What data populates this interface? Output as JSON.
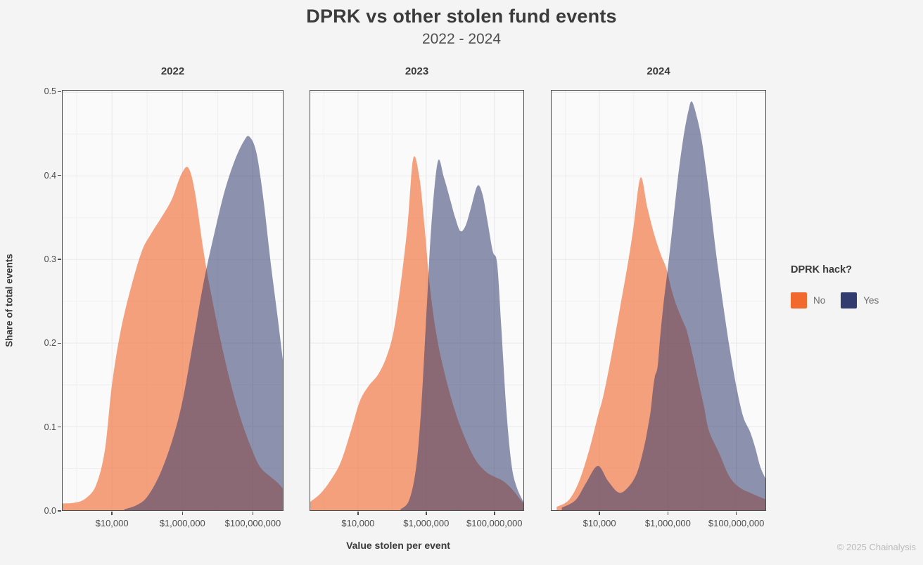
{
  "title": "DPRK vs other stolen fund events",
  "subtitle": "2022 - 2024",
  "axes": {
    "y_label": "Share of total events",
    "x_label": "Value stolen per event"
  },
  "legend": {
    "title": "DPRK hack?",
    "items": [
      {
        "label": "No",
        "color": "#f2692e"
      },
      {
        "label": "Yes",
        "color": "#323c6e"
      }
    ]
  },
  "footer": "© 2025 Chainalysis",
  "chart_data": {
    "type": "area",
    "subtype": "density",
    "title": "DPRK vs other stolen fund events",
    "subtitle": "2022 - 2024",
    "xlabel": "Value stolen per event",
    "ylabel": "Share of total events",
    "x_scale": "log10",
    "x_domain_log10": [
      2.6,
      8.85
    ],
    "y_domain": [
      0,
      0.502
    ],
    "grid": true,
    "legend_position": "right",
    "x_major_ticks_log10": [
      4,
      6,
      8
    ],
    "x_minor_gridlines_log10": [
      3,
      5,
      7
    ],
    "x_tick_labels": [
      "$10,000",
      "$1,000,000",
      "$100,000,000"
    ],
    "y_major_ticks": [
      0,
      0.1,
      0.2,
      0.3,
      0.4,
      0.5
    ],
    "y_minor_gridlines": [
      0.05,
      0.15,
      0.25,
      0.35,
      0.45
    ],
    "y_tick_labels": [
      "0.0",
      "0.1",
      "0.2",
      "0.3",
      "0.4",
      "0.5"
    ],
    "panels": [
      {
        "facet": "2022",
        "series": [
          {
            "name": "No",
            "color": "#f2692e",
            "fill_opacity": 0.62,
            "points_log10x_share": [
              [
                2.6,
                0.008
              ],
              [
                2.95,
                0.009
              ],
              [
                3.25,
                0.014
              ],
              [
                3.55,
                0.03
              ],
              [
                3.8,
                0.072
              ],
              [
                4.0,
                0.15
              ],
              [
                4.25,
                0.215
              ],
              [
                4.55,
                0.268
              ],
              [
                4.85,
                0.31
              ],
              [
                5.1,
                0.33
              ],
              [
                5.4,
                0.35
              ],
              [
                5.7,
                0.372
              ],
              [
                5.95,
                0.4
              ],
              [
                6.16,
                0.41
              ],
              [
                6.35,
                0.382
              ],
              [
                6.6,
                0.31
              ],
              [
                6.8,
                0.262
              ],
              [
                7.05,
                0.21
              ],
              [
                7.35,
                0.155
              ],
              [
                7.65,
                0.11
              ],
              [
                7.95,
                0.075
              ],
              [
                8.2,
                0.052
              ],
              [
                8.5,
                0.04
              ],
              [
                8.7,
                0.033
              ],
              [
                8.85,
                0.026
              ]
            ]
          },
          {
            "name": "Yes",
            "color": "#323c6e",
            "fill_opacity": 0.55,
            "points_log10x_share": [
              [
                4.35,
                0.001
              ],
              [
                4.7,
                0.006
              ],
              [
                5.0,
                0.016
              ],
              [
                5.35,
                0.042
              ],
              [
                5.7,
                0.082
              ],
              [
                6.0,
                0.13
              ],
              [
                6.3,
                0.2
              ],
              [
                6.6,
                0.272
              ],
              [
                6.9,
                0.33
              ],
              [
                7.2,
                0.382
              ],
              [
                7.5,
                0.42
              ],
              [
                7.75,
                0.442
              ],
              [
                7.9,
                0.447
              ],
              [
                8.1,
                0.428
              ],
              [
                8.3,
                0.372
              ],
              [
                8.5,
                0.298
              ],
              [
                8.7,
                0.232
              ],
              [
                8.85,
                0.18
              ]
            ]
          }
        ]
      },
      {
        "facet": "2023",
        "series": [
          {
            "name": "No",
            "color": "#f2692e",
            "fill_opacity": 0.62,
            "points_log10x_share": [
              [
                2.6,
                0.01
              ],
              [
                2.9,
                0.02
              ],
              [
                3.2,
                0.036
              ],
              [
                3.5,
                0.058
              ],
              [
                3.8,
                0.096
              ],
              [
                4.05,
                0.13
              ],
              [
                4.3,
                0.148
              ],
              [
                4.6,
                0.163
              ],
              [
                4.85,
                0.185
              ],
              [
                5.05,
                0.215
              ],
              [
                5.25,
                0.27
              ],
              [
                5.45,
                0.34
              ],
              [
                5.62,
                0.421
              ],
              [
                5.8,
                0.398
              ],
              [
                5.95,
                0.34
              ],
              [
                6.1,
                0.27
              ],
              [
                6.3,
                0.21
              ],
              [
                6.55,
                0.162
              ],
              [
                6.85,
                0.118
              ],
              [
                7.15,
                0.085
              ],
              [
                7.45,
                0.06
              ],
              [
                7.75,
                0.046
              ],
              [
                8.0,
                0.04
              ],
              [
                8.25,
                0.035
              ],
              [
                8.5,
                0.026
              ],
              [
                8.7,
                0.016
              ],
              [
                8.85,
                0.008
              ]
            ]
          },
          {
            "name": "Yes",
            "color": "#323c6e",
            "fill_opacity": 0.55,
            "points_log10x_share": [
              [
                5.25,
                0.001
              ],
              [
                5.5,
                0.012
              ],
              [
                5.7,
                0.05
              ],
              [
                5.85,
                0.12
              ],
              [
                6.0,
                0.23
              ],
              [
                6.15,
                0.34
              ],
              [
                6.34,
                0.417
              ],
              [
                6.52,
                0.398
              ],
              [
                6.7,
                0.372
              ],
              [
                6.85,
                0.35
              ],
              [
                7.0,
                0.334
              ],
              [
                7.15,
                0.34
              ],
              [
                7.3,
                0.36
              ],
              [
                7.5,
                0.388
              ],
              [
                7.65,
                0.378
              ],
              [
                7.8,
                0.345
              ],
              [
                7.95,
                0.31
              ],
              [
                8.08,
                0.295
              ],
              [
                8.2,
                0.22
              ],
              [
                8.35,
                0.12
              ],
              [
                8.5,
                0.055
              ],
              [
                8.65,
                0.028
              ],
              [
                8.85,
                0.01
              ]
            ]
          }
        ]
      },
      {
        "facet": "2024",
        "series": [
          {
            "name": "No",
            "color": "#f2692e",
            "fill_opacity": 0.62,
            "points_log10x_share": [
              [
                2.75,
                0.004
              ],
              [
                3.1,
                0.012
              ],
              [
                3.4,
                0.034
              ],
              [
                3.7,
                0.072
              ],
              [
                3.95,
                0.112
              ],
              [
                4.12,
                0.138
              ],
              [
                4.35,
                0.185
              ],
              [
                4.6,
                0.242
              ],
              [
                4.85,
                0.3
              ],
              [
                5.0,
                0.34
              ],
              [
                5.2,
                0.398
              ],
              [
                5.4,
                0.362
              ],
              [
                5.6,
                0.33
              ],
              [
                5.8,
                0.305
              ],
              [
                5.95,
                0.29
              ],
              [
                6.1,
                0.265
              ],
              [
                6.25,
                0.245
              ],
              [
                6.45,
                0.225
              ],
              [
                6.55,
                0.215
              ],
              [
                6.7,
                0.19
              ],
              [
                6.85,
                0.162
              ],
              [
                7.05,
                0.125
              ],
              [
                7.2,
                0.095
              ],
              [
                7.5,
                0.068
              ],
              [
                7.8,
                0.04
              ],
              [
                8.1,
                0.027
              ],
              [
                8.45,
                0.02
              ],
              [
                8.85,
                0.013
              ]
            ]
          },
          {
            "name": "Yes",
            "color": "#323c6e",
            "fill_opacity": 0.55,
            "points_log10x_share": [
              [
                2.9,
                0.003
              ],
              [
                3.3,
                0.012
              ],
              [
                3.6,
                0.032
              ],
              [
                3.95,
                0.053
              ],
              [
                4.25,
                0.035
              ],
              [
                4.57,
                0.021
              ],
              [
                4.85,
                0.028
              ],
              [
                5.1,
                0.045
              ],
              [
                5.3,
                0.075
              ],
              [
                5.42,
                0.1
              ],
              [
                5.5,
                0.12
              ],
              [
                5.56,
                0.143
              ],
              [
                5.62,
                0.16
              ],
              [
                5.7,
                0.172
              ],
              [
                5.78,
                0.21
              ],
              [
                5.88,
                0.25
              ],
              [
                6.0,
                0.29
              ],
              [
                6.15,
                0.345
              ],
              [
                6.3,
                0.4
              ],
              [
                6.45,
                0.445
              ],
              [
                6.6,
                0.478
              ],
              [
                6.7,
                0.489
              ],
              [
                6.85,
                0.47
              ],
              [
                7.0,
                0.44
              ],
              [
                7.2,
                0.38
              ],
              [
                7.4,
                0.31
              ],
              [
                7.6,
                0.25
              ],
              [
                7.8,
                0.195
              ],
              [
                8.0,
                0.148
              ],
              [
                8.2,
                0.112
              ],
              [
                8.4,
                0.094
              ],
              [
                8.55,
                0.075
              ],
              [
                8.7,
                0.052
              ],
              [
                8.85,
                0.038
              ]
            ]
          }
        ]
      }
    ]
  }
}
